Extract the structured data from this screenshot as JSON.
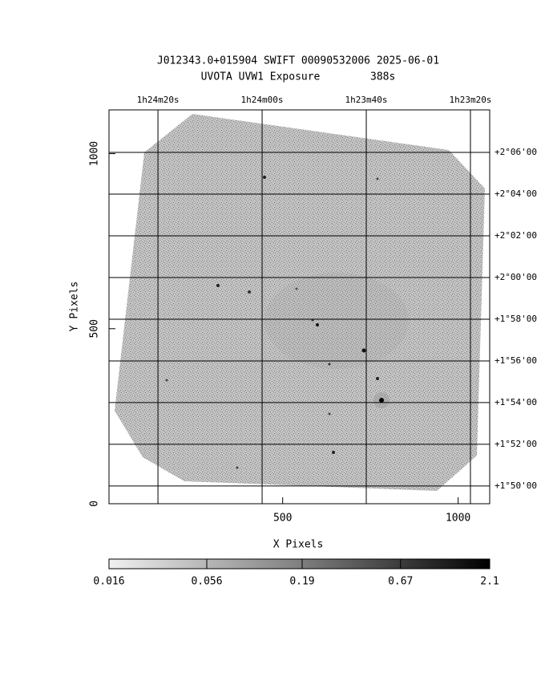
{
  "chart_data": {
    "type": "image",
    "title": "J012343.0+015904 SWIFT 00090532006 2025-06-01",
    "subtitle": "UVOTA UVW1 Exposure        388s",
    "xlabel": "X Pixels",
    "ylabel": "Y Pixels",
    "xlim": [
      5,
      1090
    ],
    "ylim": [
      0,
      1125
    ],
    "xticks": [
      500,
      1000
    ],
    "yticks": [
      0,
      500,
      1000
    ],
    "x2lim": [
      5069.4,
      4996.3
    ],
    "x2ticks": [
      {
        "value": 5060,
        "label": "1h24m20s"
      },
      {
        "value": 5040,
        "label": "1h24m00s"
      },
      {
        "value": 5020,
        "label": "1h23m40s"
      },
      {
        "value": 5000,
        "label": "1h23m20s"
      }
    ],
    "y2lim": [
      109.15,
      128.04
    ],
    "y2ticks": [
      {
        "value": 126,
        "label": "+2°06'00"
      },
      {
        "value": 124,
        "label": "+2°04'00"
      },
      {
        "value": 122,
        "label": "+2°02'00"
      },
      {
        "value": 120,
        "label": "+2°00'00"
      },
      {
        "value": 118,
        "label": "+1°58'00"
      },
      {
        "value": 116,
        "label": "+1°56'00"
      },
      {
        "value": 114,
        "label": "+1°54'00"
      },
      {
        "value": 112,
        "label": "+1°52'00"
      },
      {
        "value": 110,
        "label": "+1°50'00"
      }
    ],
    "grid": true,
    "colorbar": {
      "lim": [
        0.016,
        2.1
      ],
      "ticks": [
        0.016,
        0.056,
        0.19,
        0.67,
        2.1
      ],
      "log": true
    }
  }
}
